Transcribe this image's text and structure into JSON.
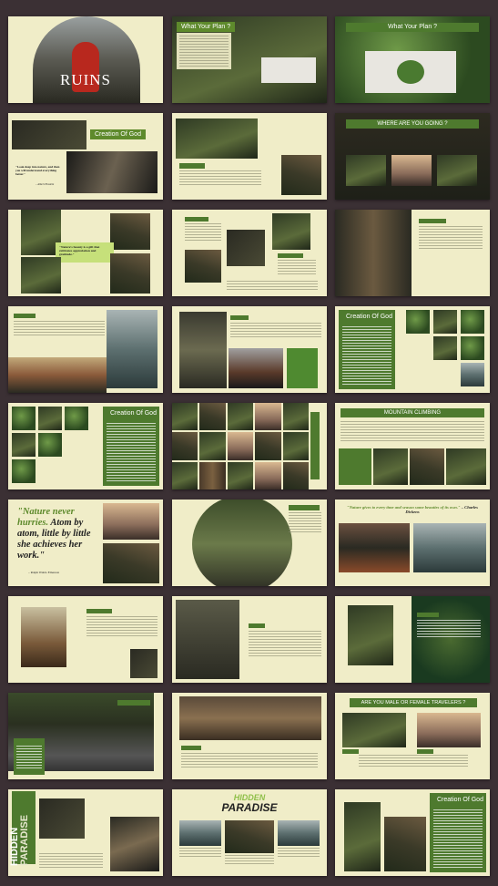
{
  "slides": {
    "s1": {
      "title": "RUINS"
    },
    "s2": {
      "title": "What Your Plan ?"
    },
    "s3": {
      "title": "What Your Plan ?"
    },
    "s4": {
      "title": "Creation Of God",
      "quote": "\"Look deep into nature, and then you will understand everything better.\"",
      "author": "– Albert Einstein"
    },
    "s6": {
      "title": "WHERE ARE YOU GOING ?"
    },
    "s7": {
      "quote": "\"Nature's beauty is a gift that cultivates appreciation and gratitude.\""
    },
    "s12": {
      "title": "Creation Of God"
    },
    "s13": {
      "title": "Creation Of God"
    },
    "s15": {
      "title": "MOUNTAIN CLIMBING"
    },
    "s16": {
      "quote_p1": "\"Nature never hurries.",
      "quote_p2": "Atom by atom, little by little she achieves her work.\"",
      "author": "– Ralph Waldo Emerson"
    },
    "s18": {
      "quote": "\"Nature gives to every time and season some beauties of its own.\"",
      "author": "– Charles Dickens"
    },
    "s24": {
      "title": "ARE YOU MALE OR FEMALE TRAVELERS ?"
    },
    "s25": {
      "side_title_1": "HIDDEN",
      "side_title_2": "PARADISE"
    },
    "s26": {
      "title_1": "HIDDEN",
      "title_2": "PARADISE"
    },
    "s27": {
      "title": "Creation Of God"
    }
  }
}
